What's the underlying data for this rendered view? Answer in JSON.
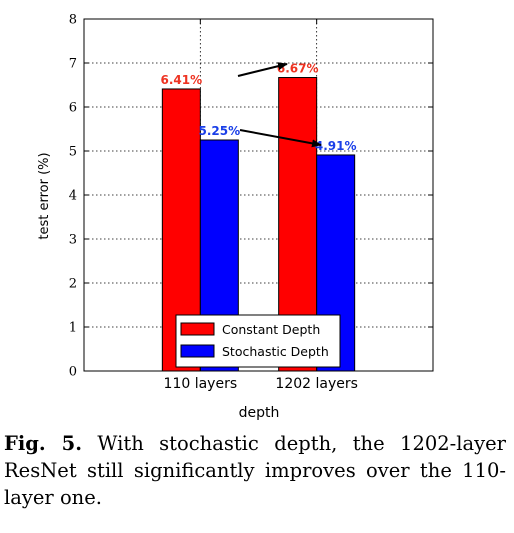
{
  "figure": {
    "label": "Fig. 5.",
    "caption": "With stochastic depth, the 1202-layer ResNet still significantly improves over the 110-layer one."
  },
  "chart_data": {
    "type": "bar",
    "title": "",
    "xlabel": "depth",
    "ylabel": "test error (%)",
    "ylim": [
      0,
      8
    ],
    "yticks": [
      "0",
      "1",
      "2",
      "3",
      "4",
      "5",
      "6",
      "7",
      "8"
    ],
    "grid": true,
    "legend_position": "bottom-center",
    "categories": [
      "110 layers",
      "1202 layers"
    ],
    "series": [
      {
        "name": "Constant Depth",
        "color": "#ff0000",
        "label_color": "#ee3322",
        "values": [
          6.41,
          6.67
        ],
        "labels": [
          "6.41%",
          "6.67%"
        ]
      },
      {
        "name": "Stochastic Depth",
        "color": "#0000ff",
        "label_color": "#1a3fe8",
        "values": [
          5.25,
          4.91
        ],
        "labels": [
          "5.25%",
          "4.91%"
        ]
      }
    ]
  }
}
